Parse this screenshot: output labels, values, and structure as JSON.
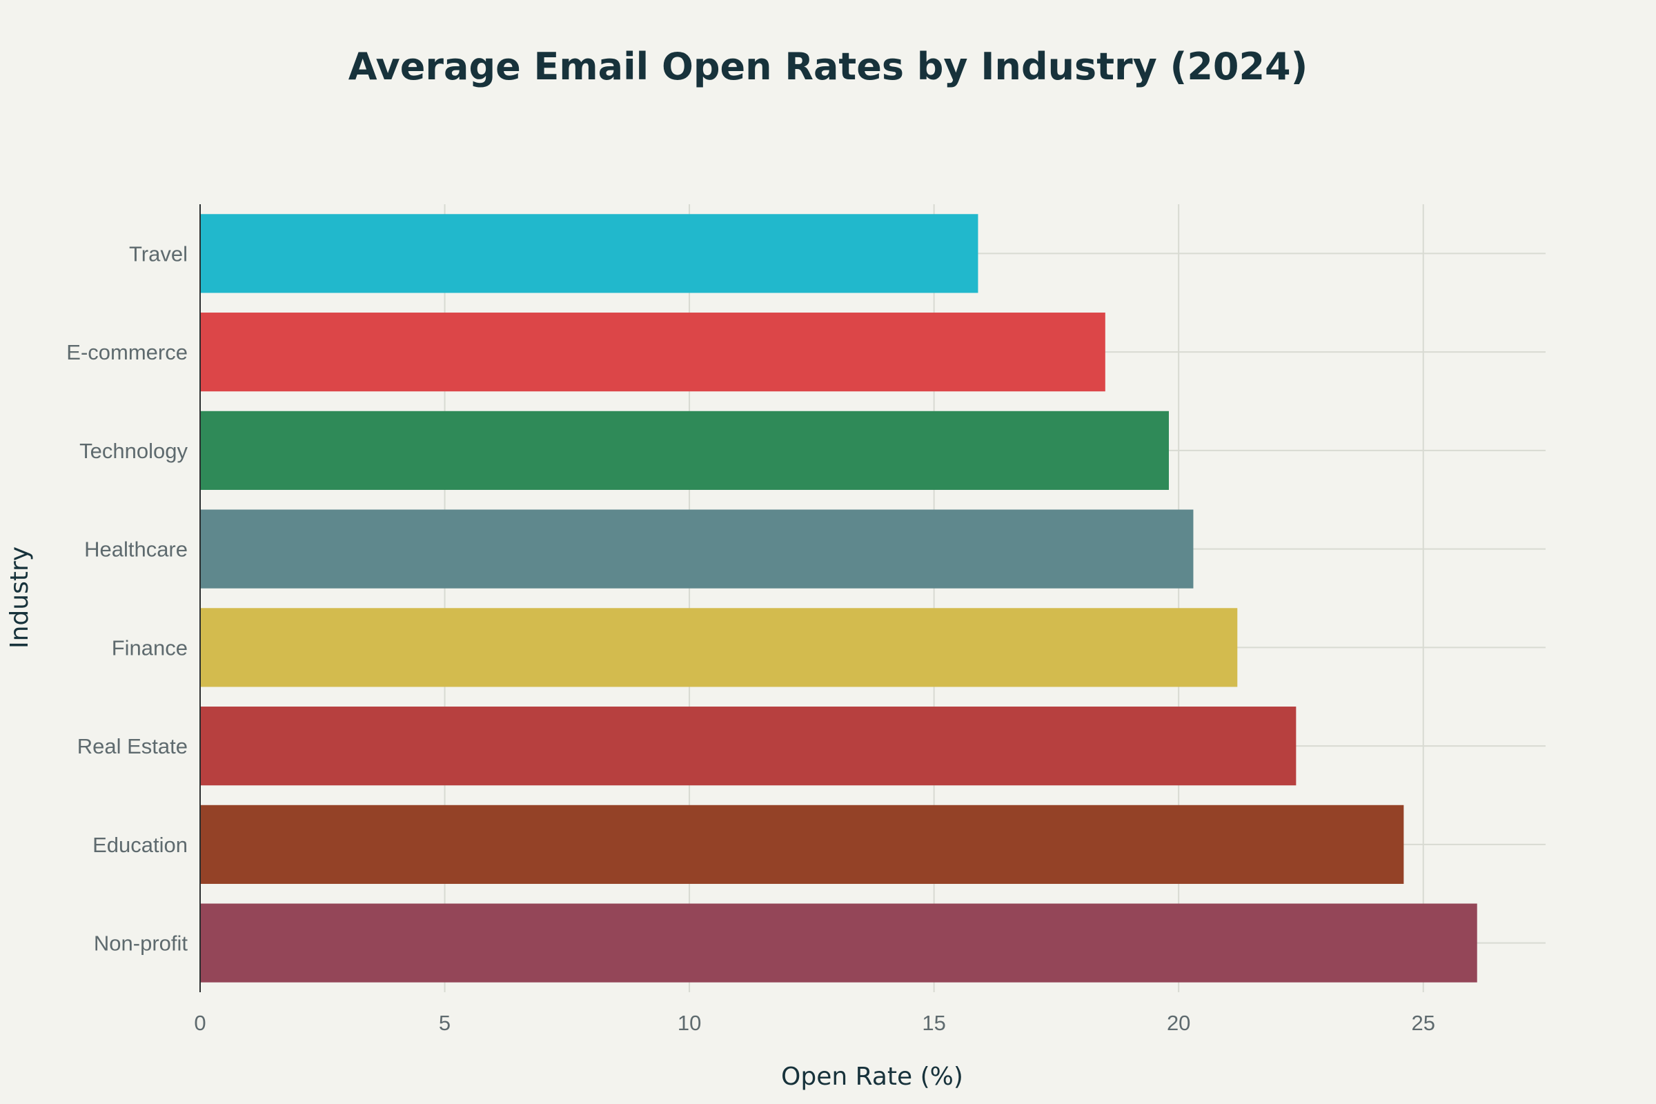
{
  "chart_data": {
    "type": "bar",
    "orientation": "horizontal",
    "title": "Average Email Open Rates by Industry (2024)",
    "xlabel": "Open Rate (%)",
    "ylabel": "Industry",
    "xlim": [
      0,
      27.5
    ],
    "xticks": [
      0,
      5,
      10,
      15,
      20,
      25
    ],
    "grid": true,
    "categories": [
      "Travel",
      "E-commerce",
      "Technology",
      "Healthcare",
      "Finance",
      "Real Estate",
      "Education",
      "Non-profit"
    ],
    "values": [
      15.9,
      18.5,
      19.8,
      20.3,
      21.2,
      22.4,
      24.6,
      26.1
    ],
    "colors": [
      "#21b8cc",
      "#dc4648",
      "#2f8a58",
      "#5f888d",
      "#d3bb4e",
      "#b7403f",
      "#944227",
      "#944658"
    ]
  }
}
